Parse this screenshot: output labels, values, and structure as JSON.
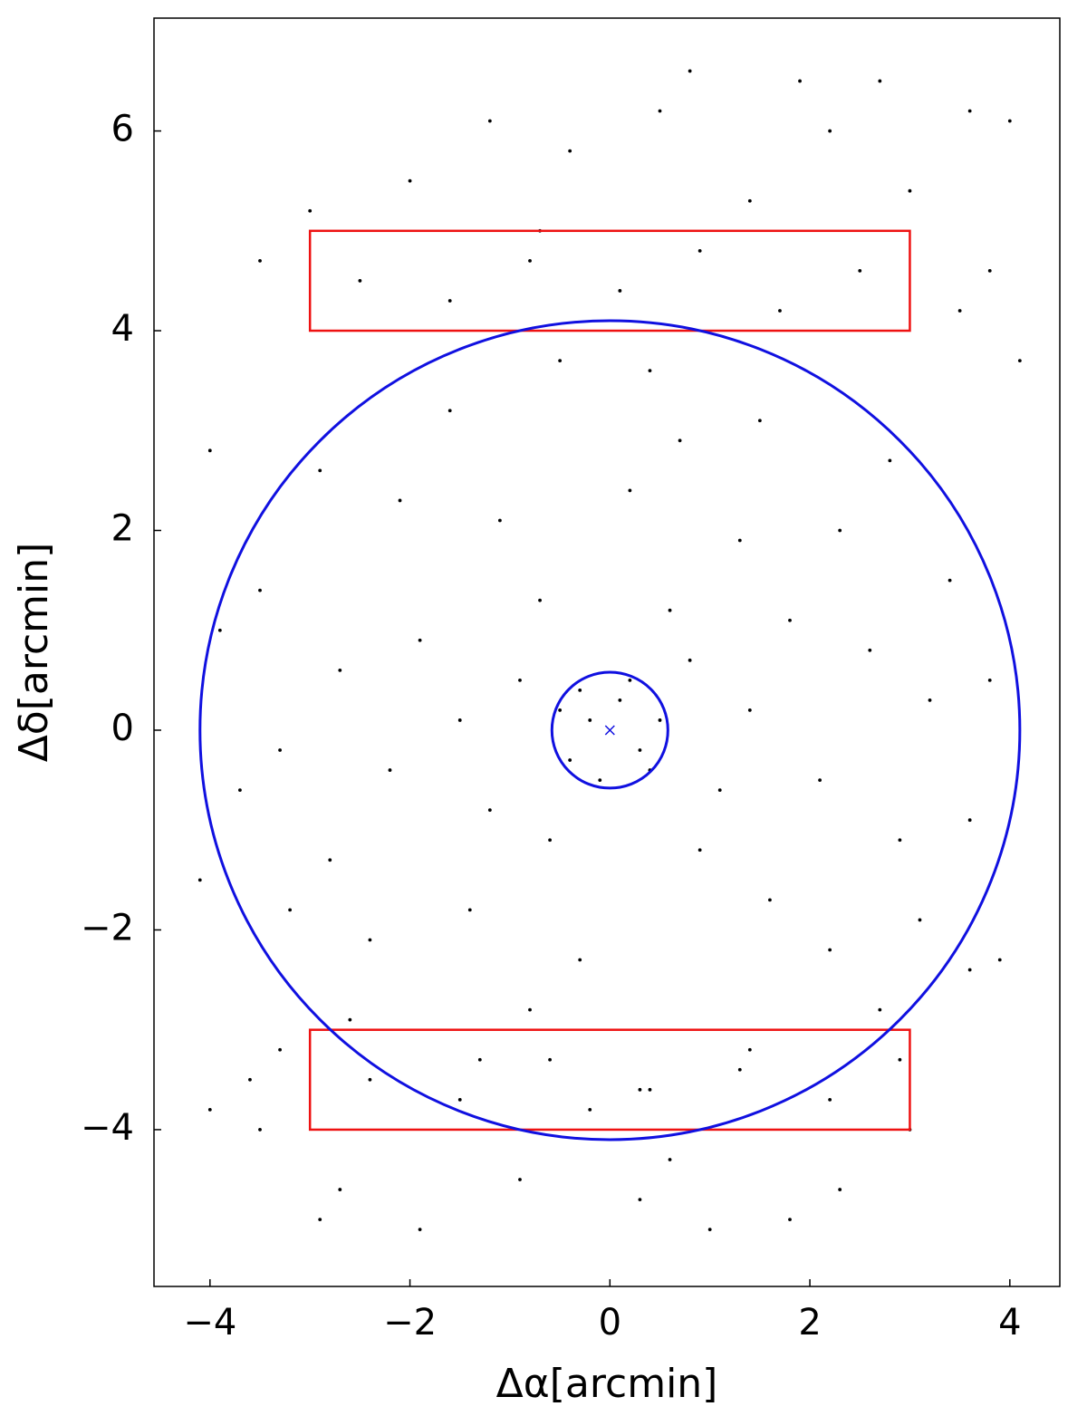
{
  "chart_data": {
    "type": "scatter",
    "x_label": "Δα[arcmin]",
    "y_label": "Δδ[arcmin]",
    "xlim": [
      -4.56,
      4.5
    ],
    "ylim": [
      -5.57,
      7.13
    ],
    "xticks": [
      {
        "value": -4,
        "label": "−4"
      },
      {
        "value": -2,
        "label": "−2"
      },
      0,
      2,
      4
    ],
    "yticks": [
      {
        "value": -4,
        "label": "−4"
      },
      {
        "value": -2,
        "label": "−2"
      },
      0,
      2,
      4,
      6
    ],
    "color": "#000000",
    "x": [
      0.1,
      -0.2,
      0.3,
      -0.4,
      0.2,
      -0.1,
      0.5,
      -0.5,
      0.4,
      -0.3,
      0.8,
      -0.9,
      1.1,
      -1.2,
      0.6,
      -0.7,
      0.9,
      -0.6,
      1.4,
      -1.5,
      1.8,
      -1.9,
      2.1,
      -2.2,
      1.3,
      -1.1,
      1.6,
      -1.4,
      0.2,
      -0.3,
      2.6,
      -2.7,
      2.9,
      -2.8,
      2.3,
      -2.1,
      2.2,
      -2.4,
      0.7,
      -0.8,
      3.2,
      -3.3,
      3.4,
      -3.5,
      3.1,
      -3.2,
      1.5,
      -1.6,
      1.4,
      -1.3,
      3.8,
      -3.7,
      3.6,
      -3.9,
      0.4,
      -0.5,
      0.3,
      -0.2,
      2.8,
      -2.9,
      2.7,
      -2.6,
      3.9,
      -4.0,
      4.1,
      -4.1,
      -4.0,
      3.6,
      -3.6,
      3.5,
      -2.5,
      -1.6,
      -0.8,
      0.1,
      0.9,
      1.7,
      2.5,
      -2.0,
      -0.4,
      0.5,
      1.4,
      2.2,
      3.0,
      -3.0,
      -1.2,
      0.8,
      1.9,
      2.7,
      3.6,
      4.0,
      -3.5,
      3.8,
      -0.7,
      -2.4,
      -1.5,
      -0.6,
      0.4,
      1.3,
      2.2,
      -2.7,
      -1.9,
      -0.9,
      0.3,
      1.0,
      1.8,
      2.3,
      -3.5,
      3.0,
      -2.9,
      0.6,
      -3.3,
      2.9
    ],
    "values": [
      0.3,
      0.1,
      -0.2,
      -0.3,
      0.5,
      -0.5,
      0.1,
      0.2,
      -0.4,
      0.4,
      0.7,
      0.5,
      -0.6,
      -0.8,
      1.2,
      1.3,
      -1.2,
      -1.1,
      0.2,
      0.1,
      1.1,
      0.9,
      -0.5,
      -0.4,
      1.9,
      2.1,
      -1.7,
      -1.8,
      2.4,
      -2.3,
      0.8,
      0.6,
      -1.1,
      -1.3,
      2.0,
      2.3,
      -2.2,
      -2.1,
      2.9,
      -2.8,
      0.3,
      -0.2,
      1.5,
      1.4,
      -1.9,
      -1.8,
      3.1,
      3.2,
      -3.2,
      -3.3,
      0.5,
      -0.6,
      -0.9,
      1.0,
      3.6,
      3.7,
      -3.6,
      -3.8,
      2.7,
      2.6,
      -2.8,
      -2.9,
      -2.3,
      2.8,
      3.7,
      -1.5,
      -3.8,
      -2.4,
      -3.5,
      4.2,
      4.5,
      4.3,
      4.7,
      4.4,
      4.8,
      4.2,
      4.6,
      5.5,
      5.8,
      6.2,
      5.3,
      6.0,
      5.4,
      5.2,
      6.1,
      6.6,
      6.5,
      6.5,
      6.2,
      6.1,
      4.7,
      4.6,
      5.0,
      -3.5,
      -3.7,
      -3.3,
      -3.6,
      -3.4,
      -3.7,
      -4.6,
      -5.0,
      -4.5,
      -4.7,
      -5.0,
      -4.9,
      -4.6,
      -4.0,
      -4.0,
      -4.9,
      -4.3,
      -3.2,
      -3.3
    ],
    "circles": [
      {
        "center": [
          0,
          0
        ],
        "radius": 4.1,
        "color": "#1010e0"
      },
      {
        "center": [
          0,
          0
        ],
        "radius": 0.58,
        "color": "#1010e0"
      }
    ],
    "rects": [
      {
        "x": [
          -3,
          3
        ],
        "y": [
          4,
          5
        ],
        "color": "#ee1111"
      },
      {
        "x": [
          -3,
          3
        ],
        "y": [
          -4,
          -3
        ],
        "color": "#ee1111"
      }
    ],
    "center_marker": {
      "x": 0,
      "y": 0,
      "color": "#1010e0"
    }
  }
}
